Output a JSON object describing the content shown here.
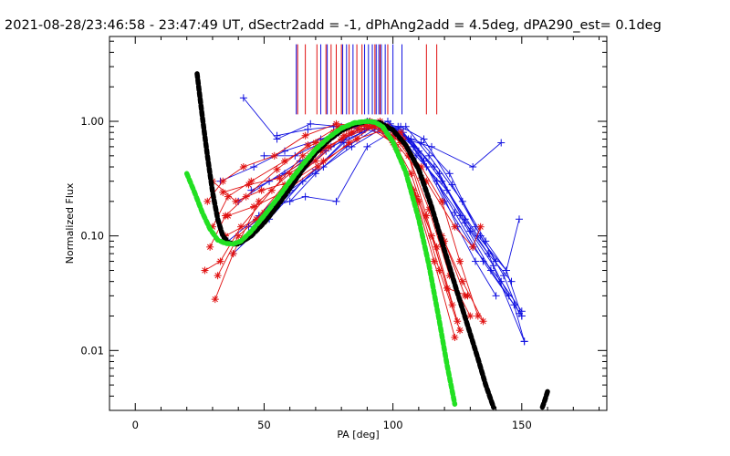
{
  "chart_data": {
    "type": "line",
    "title": "2021-08-28/23:46:58 - 23:47:49 UT, dSectr2add = -1, dPhAng2add = 4.5deg, dPA290_est=  0.1deg",
    "xlabel": "PA [deg]",
    "ylabel": "Normalized Flux",
    "xlim": [
      -10,
      183
    ],
    "ylim": [
      0.003,
      5.5
    ],
    "yscale": "log",
    "grid": false,
    "x_ticks": [
      0,
      50,
      100,
      150
    ],
    "x_tick_labels": [
      "0",
      "50",
      "100",
      "150"
    ],
    "y_ticks": [
      0.01,
      0.1,
      1.0
    ],
    "y_tick_labels": [
      "0.01",
      "0.10",
      "1.00"
    ],
    "colors": {
      "red": "#e01010",
      "blue": "#1010e0",
      "black": "#000000",
      "green": "#22e022"
    },
    "series": [
      {
        "color": "black",
        "style": "thick-dashed",
        "x": [
          24,
          26,
          28,
          30,
          32,
          34,
          36,
          38,
          40,
          45,
          50,
          55,
          60,
          65,
          70,
          75,
          80,
          85,
          90,
          95,
          100,
          105,
          110,
          115,
          120,
          125,
          130,
          133,
          136,
          139
        ],
        "y": [
          2.6,
          1.1,
          0.5,
          0.24,
          0.14,
          0.1,
          0.088,
          0.085,
          0.085,
          0.1,
          0.13,
          0.18,
          0.26,
          0.38,
          0.53,
          0.68,
          0.83,
          0.94,
          1.0,
          0.97,
          0.84,
          0.62,
          0.38,
          0.18,
          0.075,
          0.032,
          0.014,
          0.0085,
          0.005,
          0.0032
        ]
      },
      {
        "color": "black",
        "style": "thick-dashed",
        "x": [
          158,
          159,
          160
        ],
        "y": [
          0.0032,
          0.0037,
          0.0044
        ]
      },
      {
        "color": "green",
        "style": "thick-dashed",
        "x": [
          20,
          23,
          26,
          29,
          32,
          35,
          38,
          41,
          45,
          50,
          55,
          60,
          65,
          70,
          75,
          80,
          85,
          90,
          93,
          96,
          100,
          105,
          110,
          114,
          118,
          121,
          124
        ],
        "y": [
          0.35,
          0.24,
          0.16,
          0.115,
          0.092,
          0.086,
          0.085,
          0.09,
          0.11,
          0.15,
          0.21,
          0.3,
          0.42,
          0.57,
          0.72,
          0.87,
          0.97,
          1.0,
          0.98,
          0.9,
          0.66,
          0.36,
          0.14,
          0.055,
          0.018,
          0.0075,
          0.0034
        ]
      },
      {
        "color": "blue",
        "marker": "plus",
        "x": [
          42,
          55,
          68,
          80,
          90,
          100,
          108,
          117,
          125,
          132,
          140
        ],
        "y": [
          1.6,
          0.7,
          0.95,
          0.9,
          1.0,
          0.85,
          0.6,
          0.3,
          0.12,
          0.06,
          0.03
        ]
      },
      {
        "color": "blue",
        "marker": "plus",
        "x": [
          33,
          46,
          58,
          72,
          86,
          96,
          106,
          118,
          128,
          137,
          146
        ],
        "y": [
          0.3,
          0.4,
          0.55,
          0.7,
          0.9,
          0.95,
          0.7,
          0.35,
          0.13,
          0.07,
          0.04
        ]
      },
      {
        "color": "blue",
        "marker": "plus",
        "x": [
          40,
          52,
          64,
          76,
          88,
          98,
          110,
          120,
          131,
          142,
          150
        ],
        "y": [
          0.2,
          0.3,
          0.45,
          0.6,
          0.8,
          1.0,
          0.55,
          0.2,
          0.08,
          0.04,
          0.022
        ]
      },
      {
        "color": "blue",
        "marker": "plus",
        "x": [
          44,
          57,
          70,
          83,
          95,
          103,
          112,
          124,
          135,
          147,
          151
        ],
        "y": [
          0.12,
          0.2,
          0.38,
          0.75,
          0.95,
          0.85,
          0.45,
          0.16,
          0.06,
          0.025,
          0.012
        ]
      },
      {
        "color": "blue",
        "marker": "plus",
        "x": [
          36,
          48,
          61,
          74,
          87,
          99,
          109,
          121,
          133,
          144,
          149
        ],
        "y": [
          0.09,
          0.15,
          0.3,
          0.55,
          0.85,
          0.95,
          0.5,
          0.25,
          0.1,
          0.05,
          0.14
        ]
      },
      {
        "color": "blue",
        "marker": "plus",
        "x": [
          50,
          62,
          75,
          85,
          92,
          101,
          111,
          122,
          132,
          140
        ],
        "y": [
          0.5,
          0.5,
          0.7,
          0.95,
          0.9,
          0.8,
          0.65,
          0.35,
          0.12,
          0.06
        ]
      },
      {
        "color": "blue",
        "marker": "plus",
        "x": [
          45,
          58,
          69,
          79,
          91,
          102,
          113,
          126,
          138,
          150
        ],
        "y": [
          0.25,
          0.35,
          0.5,
          0.8,
          1.0,
          0.9,
          0.4,
          0.15,
          0.05,
          0.02
        ]
      },
      {
        "color": "blue",
        "marker": "plus",
        "x": [
          55,
          67,
          77,
          89,
          100,
          115,
          131,
          142
        ],
        "y": [
          0.75,
          0.85,
          0.9,
          0.85,
          0.75,
          0.6,
          0.4,
          0.65
        ]
      },
      {
        "color": "blue",
        "marker": "plus",
        "x": [
          48,
          60,
          73,
          84,
          97,
          107,
          119,
          130,
          139,
          145
        ],
        "y": [
          0.15,
          0.25,
          0.4,
          0.6,
          0.9,
          0.7,
          0.3,
          0.11,
          0.055,
          0.03
        ]
      },
      {
        "color": "blue",
        "marker": "plus",
        "x": [
          38,
          52,
          65,
          81,
          94,
          104,
          116,
          128,
          137,
          151
        ],
        "y": [
          0.07,
          0.14,
          0.3,
          0.65,
          0.95,
          0.8,
          0.4,
          0.14,
          0.07,
          0.012
        ]
      },
      {
        "color": "blue",
        "marker": "plus",
        "x": [
          60,
          70,
          82,
          93,
          105,
          114,
          127,
          136,
          144,
          150
        ],
        "y": [
          0.2,
          0.35,
          0.6,
          0.85,
          0.9,
          0.5,
          0.2,
          0.09,
          0.05,
          0.02
        ]
      },
      {
        "color": "blue",
        "marker": "plus",
        "x": [
          53,
          66,
          78,
          90,
          103,
          112,
          123,
          134,
          143,
          149
        ],
        "y": [
          0.18,
          0.22,
          0.2,
          0.6,
          0.9,
          0.7,
          0.28,
          0.1,
          0.045,
          0.021
        ]
      },
      {
        "color": "red",
        "marker": "star",
        "x": [
          28,
          34,
          42,
          54,
          66,
          78,
          90,
          100,
          108,
          116,
          124
        ],
        "y": [
          0.2,
          0.3,
          0.4,
          0.5,
          0.75,
          0.95,
          0.9,
          0.65,
          0.25,
          0.06,
          0.013
        ]
      },
      {
        "color": "red",
        "marker": "star",
        "x": [
          30,
          36,
          45,
          58,
          70,
          82,
          93,
          102,
          110,
          118,
          126
        ],
        "y": [
          0.12,
          0.22,
          0.3,
          0.45,
          0.65,
          0.85,
          0.95,
          0.55,
          0.2,
          0.05,
          0.015
        ]
      },
      {
        "color": "red",
        "marker": "star",
        "x": [
          31,
          38,
          48,
          60,
          72,
          84,
          95,
          104,
          112,
          120,
          128
        ],
        "y": [
          0.028,
          0.07,
          0.2,
          0.35,
          0.55,
          0.8,
          1.0,
          0.7,
          0.3,
          0.09,
          0.03
        ]
      },
      {
        "color": "red",
        "marker": "star",
        "x": [
          29,
          35,
          43,
          55,
          67,
          79,
          91,
          101,
          109,
          117,
          125
        ],
        "y": [
          0.08,
          0.15,
          0.22,
          0.38,
          0.62,
          0.9,
          0.98,
          0.6,
          0.22,
          0.08,
          0.018
        ]
      },
      {
        "color": "red",
        "marker": "star",
        "x": [
          32,
          40,
          50,
          62,
          75,
          87,
          98,
          106,
          114,
          122,
          130
        ],
        "y": [
          0.045,
          0.1,
          0.16,
          0.32,
          0.6,
          0.85,
          0.9,
          0.5,
          0.17,
          0.045,
          0.02
        ]
      },
      {
        "color": "red",
        "marker": "star",
        "x": [
          27,
          33,
          41,
          53,
          65,
          77,
          89,
          99,
          107,
          115,
          123
        ],
        "y": [
          0.05,
          0.06,
          0.12,
          0.25,
          0.5,
          0.8,
          0.95,
          0.75,
          0.35,
          0.1,
          0.025
        ]
      },
      {
        "color": "red",
        "marker": "star",
        "x": [
          34,
          44,
          56,
          68,
          80,
          92,
          103,
          111,
          119,
          127,
          135
        ],
        "y": [
          0.24,
          0.28,
          0.32,
          0.5,
          0.7,
          0.9,
          0.8,
          0.32,
          0.1,
          0.04,
          0.018
        ]
      },
      {
        "color": "red",
        "marker": "star",
        "x": [
          30,
          39,
          49,
          61,
          73,
          86,
          97,
          105,
          113,
          121,
          129
        ],
        "y": [
          0.3,
          0.2,
          0.25,
          0.3,
          0.45,
          0.7,
          0.85,
          0.6,
          0.15,
          0.035,
          0.03
        ]
      },
      {
        "color": "red",
        "marker": "star",
        "x": [
          36,
          46,
          59,
          71,
          83,
          94,
          103,
          111,
          119,
          126,
          133
        ],
        "y": [
          0.15,
          0.18,
          0.25,
          0.4,
          0.65,
          0.95,
          0.65,
          0.4,
          0.2,
          0.06,
          0.02
        ]
      },
      {
        "color": "red",
        "marker": "star",
        "x": [
          35,
          47,
          58,
          70,
          81,
          91,
          100,
          113,
          124,
          131,
          134
        ],
        "y": [
          0.1,
          0.14,
          0.28,
          0.45,
          0.75,
          1.0,
          0.7,
          0.3,
          0.12,
          0.08,
          0.12
        ]
      }
    ],
    "vlines": [
      {
        "color": "red",
        "x": [
          63,
          66,
          70.5,
          74,
          76,
          78,
          80,
          83,
          86,
          88,
          93,
          95,
          98,
          113,
          117
        ]
      },
      {
        "color": "blue",
        "x": [
          62.5,
          72,
          74.5,
          80.5,
          82,
          84.5,
          89,
          90.5,
          92,
          93.5,
          94.5,
          95.5,
          97,
          100,
          103.5
        ]
      }
    ]
  }
}
